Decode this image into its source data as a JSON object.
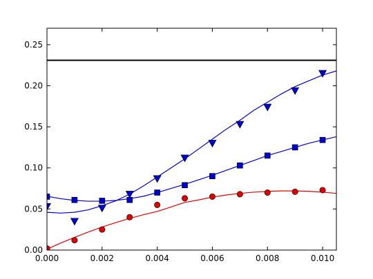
{
  "chart_data": {
    "type": "scatter",
    "title": "",
    "xlabel": "",
    "ylabel": "",
    "xlim": [
      0.0,
      0.0105
    ],
    "ylim": [
      0.0,
      0.27
    ],
    "grid": false,
    "legend": "none",
    "x_ticks": [
      0.0,
      0.002,
      0.004,
      0.006,
      0.008,
      0.01
    ],
    "x_tick_labels": [
      "0.000",
      "0.002",
      "0.004",
      "0.006",
      "0.008",
      "0.010"
    ],
    "y_ticks": [
      0.0,
      0.05,
      0.1,
      0.15,
      0.2,
      0.25
    ],
    "y_tick_labels": [
      "0.00",
      "0.05",
      "0.10",
      "0.15",
      "0.20",
      "0.25"
    ],
    "reference_line": {
      "y": 0.231,
      "color": "#000000"
    },
    "series": [
      {
        "marker": "triangle-down",
        "color": "#0000cc",
        "x": [
          0.0,
          0.001,
          0.002,
          0.003,
          0.004,
          0.005,
          0.006,
          0.007,
          0.008,
          0.009,
          0.01
        ],
        "y": [
          0.053,
          0.035,
          0.051,
          0.068,
          0.087,
          0.112,
          0.13,
          0.153,
          0.174,
          0.194,
          0.215
        ],
        "fit": [
          [
            0.0,
            0.046
          ],
          [
            0.0005,
            0.045
          ],
          [
            0.001,
            0.046
          ],
          [
            0.0015,
            0.049
          ],
          [
            0.002,
            0.054
          ],
          [
            0.0025,
            0.06
          ],
          [
            0.003,
            0.068
          ],
          [
            0.0035,
            0.078
          ],
          [
            0.004,
            0.089
          ],
          [
            0.0045,
            0.1
          ],
          [
            0.005,
            0.111
          ],
          [
            0.0055,
            0.123
          ],
          [
            0.006,
            0.135
          ],
          [
            0.0065,
            0.147
          ],
          [
            0.007,
            0.158
          ],
          [
            0.0075,
            0.17
          ],
          [
            0.008,
            0.18
          ],
          [
            0.0085,
            0.19
          ],
          [
            0.009,
            0.199
          ],
          [
            0.0095,
            0.206
          ],
          [
            0.01,
            0.213
          ],
          [
            0.0105,
            0.218
          ]
        ]
      },
      {
        "marker": "square",
        "color": "#0000cc",
        "x": [
          0.0,
          0.001,
          0.002,
          0.003,
          0.004,
          0.005,
          0.006,
          0.007,
          0.008,
          0.009,
          0.01
        ],
        "y": [
          0.065,
          0.061,
          0.06,
          0.061,
          0.07,
          0.079,
          0.09,
          0.103,
          0.115,
          0.125,
          0.134
        ],
        "fit": [
          [
            0.0,
            0.0655
          ],
          [
            0.0005,
            0.0625
          ],
          [
            0.001,
            0.0605
          ],
          [
            0.0015,
            0.0595
          ],
          [
            0.002,
            0.0595
          ],
          [
            0.0025,
            0.0605
          ],
          [
            0.003,
            0.0625
          ],
          [
            0.0035,
            0.0655
          ],
          [
            0.004,
            0.07
          ],
          [
            0.0045,
            0.075
          ],
          [
            0.005,
            0.08
          ],
          [
            0.0055,
            0.0855
          ],
          [
            0.006,
            0.091
          ],
          [
            0.0065,
            0.097
          ],
          [
            0.007,
            0.103
          ],
          [
            0.0075,
            0.109
          ],
          [
            0.008,
            0.115
          ],
          [
            0.0085,
            0.12
          ],
          [
            0.009,
            0.125
          ],
          [
            0.0095,
            0.13
          ],
          [
            0.01,
            0.134
          ],
          [
            0.0105,
            0.138
          ]
        ]
      },
      {
        "marker": "circle",
        "color": "#dd0000",
        "x": [
          0.0,
          0.001,
          0.002,
          0.003,
          0.004,
          0.005,
          0.006,
          0.007,
          0.008,
          0.009,
          0.01
        ],
        "y": [
          0.002,
          0.012,
          0.025,
          0.04,
          0.055,
          0.063,
          0.065,
          0.068,
          0.07,
          0.071,
          0.073
        ],
        "fit": [
          [
            0.0,
            0.001
          ],
          [
            0.0005,
            0.0085
          ],
          [
            0.001,
            0.0155
          ],
          [
            0.0015,
            0.022
          ],
          [
            0.002,
            0.028
          ],
          [
            0.0025,
            0.0335
          ],
          [
            0.003,
            0.0385
          ],
          [
            0.0035,
            0.043
          ],
          [
            0.004,
            0.047
          ],
          [
            0.0045,
            0.0525
          ],
          [
            0.005,
            0.058
          ],
          [
            0.0055,
            0.061
          ],
          [
            0.006,
            0.0645
          ],
          [
            0.0065,
            0.067
          ],
          [
            0.007,
            0.069
          ],
          [
            0.0075,
            0.0705
          ],
          [
            0.008,
            0.0715
          ],
          [
            0.0085,
            0.072
          ],
          [
            0.009,
            0.072
          ],
          [
            0.0095,
            0.0715
          ],
          [
            0.01,
            0.0705
          ],
          [
            0.0105,
            0.069
          ]
        ]
      }
    ]
  }
}
